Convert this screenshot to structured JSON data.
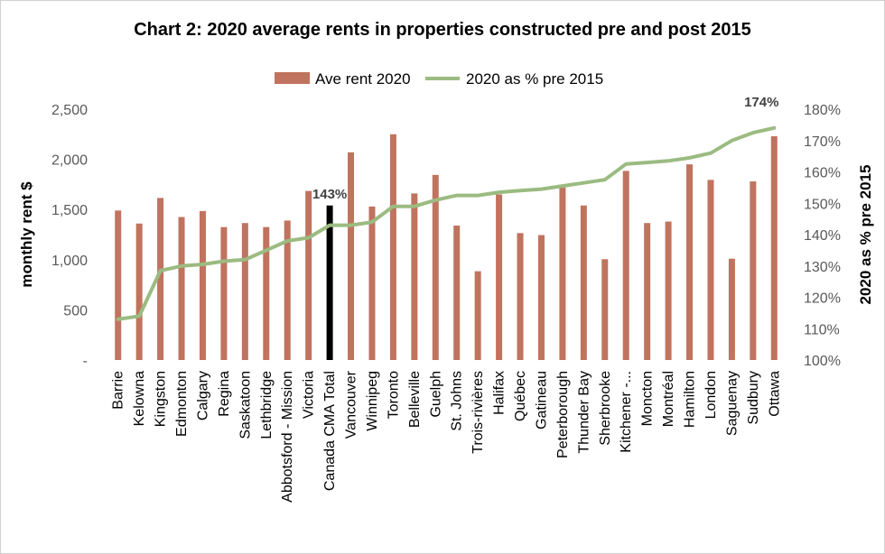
{
  "chart_data": {
    "type": "bar",
    "title": "Chart 2: 2020 average rents in properties constructed pre and post 2015",
    "categories": [
      "Barrie",
      "Kelowna",
      "Kingston",
      "Edmonton",
      "Calgary",
      "Regina",
      "Saskatoon",
      "Lethbridge",
      "Abbotsford - Mission",
      "Victoria",
      "Canada CMA Total",
      "Vancouver",
      "Winnipeg",
      "Toronto",
      "Belleville",
      "Guelph",
      "St. Johns",
      "Trois-rivières",
      "Halifax",
      "Québec",
      "Gatineau",
      "Peterborough",
      "Thunder Bay",
      "Sherbrooke",
      "Kitchener -...",
      "Moncton",
      "Montréal",
      "Hamilton",
      "London",
      "Saguenay",
      "Sudbury",
      "Ottawa"
    ],
    "series": [
      {
        "name": "Ave rent 2020",
        "axis": "left",
        "type": "bar",
        "color": "#c0735e",
        "highlight": {
          "category": "Canada CMA Total",
          "color": "#000000"
        },
        "values": [
          1490,
          1360,
          1615,
          1425,
          1485,
          1325,
          1365,
          1325,
          1390,
          1685,
          1540,
          2070,
          1530,
          2250,
          1660,
          1845,
          1340,
          885,
          1650,
          1265,
          1245,
          1720,
          1540,
          1005,
          1885,
          1365,
          1380,
          1950,
          1795,
          1010,
          1780,
          2230
        ]
      },
      {
        "name": "2020 as % pre 2015",
        "axis": "right",
        "type": "line",
        "color": "#9bbb81",
        "values": [
          113,
          114,
          128.5,
          130,
          130.5,
          131.5,
          132,
          135,
          138,
          139,
          143,
          143,
          144,
          149,
          149,
          151,
          152.5,
          152.5,
          153.5,
          154,
          154.5,
          155.5,
          156.5,
          157.5,
          162.5,
          163,
          163.5,
          164.5,
          166,
          170,
          172.5,
          174
        ]
      }
    ],
    "annotations": [
      {
        "text": "143%",
        "category": "Canada CMA Total"
      },
      {
        "text": "174%",
        "category": "Ottawa"
      }
    ],
    "y_left": {
      "label": "monthly rent $",
      "ylim": [
        0,
        2500
      ],
      "ticks": [
        "-",
        "500",
        "1,000",
        "1,500",
        "2,000",
        "2,500"
      ]
    },
    "y_right": {
      "label": "2020 as % pre 2015",
      "ylim": [
        100,
        180
      ],
      "ticks": [
        "100%",
        "110%",
        "120%",
        "130%",
        "140%",
        "150%",
        "160%",
        "170%",
        "180%"
      ]
    },
    "grid": false,
    "legend_position": "top"
  }
}
